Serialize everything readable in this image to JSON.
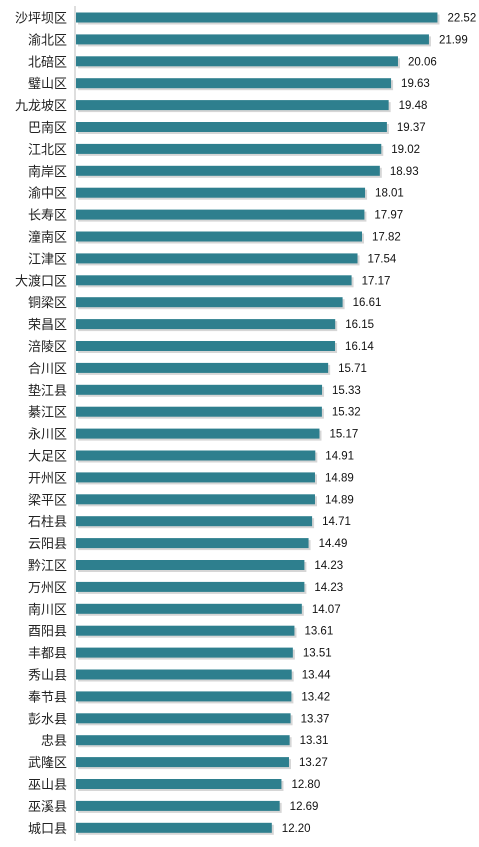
{
  "chart_data": {
    "type": "bar",
    "orientation": "horizontal",
    "title": "",
    "xlabel": "",
    "ylabel": "",
    "grid": false,
    "legend": "none",
    "bar_color": "#2e7f8e",
    "xlim": [
      0,
      24
    ],
    "categories": [
      "沙坪坝区",
      "渝北区",
      "北碚区",
      "璧山区",
      "九龙坡区",
      "巴南区",
      "江北区",
      "南岸区",
      "渝中区",
      "长寿区",
      "潼南区",
      "江津区",
      "大渡口区",
      "铜梁区",
      "荣昌区",
      "涪陵区",
      "合川区",
      "垫江县",
      "綦江区",
      "永川区",
      "大足区",
      "开州区",
      "梁平区",
      "石柱县",
      "云阳县",
      "黔江区",
      "万州区",
      "南川区",
      "酉阳县",
      "丰都县",
      "秀山县",
      "奉节县",
      "彭水县",
      "忠县",
      "武隆区",
      "巫山县",
      "巫溪县",
      "城口县"
    ],
    "values": [
      22.52,
      21.99,
      20.06,
      19.63,
      19.48,
      19.37,
      19.02,
      18.93,
      18.01,
      17.97,
      17.82,
      17.54,
      17.17,
      16.61,
      16.15,
      16.14,
      15.71,
      15.33,
      15.32,
      15.17,
      14.91,
      14.89,
      14.89,
      14.71,
      14.49,
      14.23,
      14.23,
      14.07,
      13.61,
      13.51,
      13.44,
      13.42,
      13.37,
      13.31,
      13.27,
      12.8,
      12.69,
      12.2
    ],
    "value_labels": [
      "22.52",
      "21.99",
      "20.06",
      "19.63",
      "19.48",
      "19.37",
      "19.02",
      "18.93",
      "18.01",
      "17.97",
      "17.82",
      "17.54",
      "17.17",
      "16.61",
      "16.15",
      "16.14",
      "15.71",
      "15.33",
      "15.32",
      "15.17",
      "14.91",
      "14.89",
      "14.89",
      "14.71",
      "14.49",
      "14.23",
      "14.23",
      "14.07",
      "13.61",
      "13.51",
      "13.44",
      "13.42",
      "13.37",
      "13.31",
      "13.27",
      "12.80",
      "12.69",
      "12.20"
    ]
  }
}
